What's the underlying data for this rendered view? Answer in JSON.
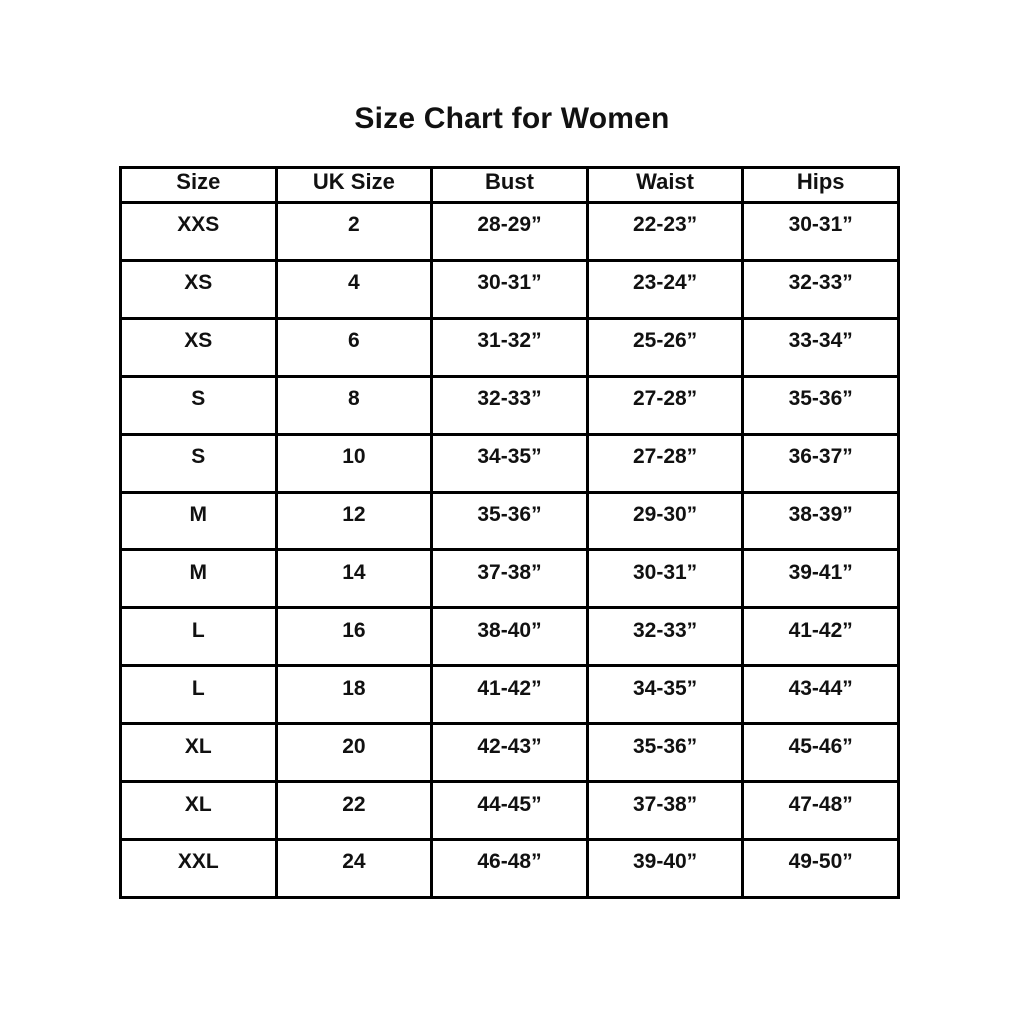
{
  "page": {
    "title": "Size Chart for Women"
  },
  "chart_data": {
    "type": "table",
    "title": "Size Chart for Women",
    "columns": [
      "Size",
      "UK Size",
      "Bust",
      "Waist",
      "Hips"
    ],
    "rows": [
      [
        "XXS",
        "2",
        "28-29”",
        "22-23”",
        "30-31”"
      ],
      [
        "XS",
        "4",
        "30-31”",
        "23-24”",
        "32-33”"
      ],
      [
        "XS",
        "6",
        "31-32”",
        "25-26”",
        "33-34”"
      ],
      [
        "S",
        "8",
        "32-33”",
        "27-28”",
        "35-36”"
      ],
      [
        "S",
        "10",
        "34-35”",
        "27-28”",
        "36-37”"
      ],
      [
        "M",
        "12",
        "35-36”",
        "29-30”",
        "38-39”"
      ],
      [
        "M",
        "14",
        "37-38”",
        "30-31”",
        "39-41”"
      ],
      [
        "L",
        "16",
        "38-40”",
        "32-33”",
        "41-42”"
      ],
      [
        "L",
        "18",
        "41-42”",
        "34-35”",
        "43-44”"
      ],
      [
        "XL",
        "20",
        "42-43”",
        "35-36”",
        "45-46”"
      ],
      [
        "XL",
        "22",
        "44-45”",
        "37-38”",
        "47-48”"
      ],
      [
        "XXL",
        "24",
        "46-48”",
        "39-40”",
        "49-50”"
      ]
    ],
    "layout": {
      "grid": "on",
      "border_color": "#000000",
      "text_color": "#111111",
      "background_color": "#ffffff"
    }
  }
}
